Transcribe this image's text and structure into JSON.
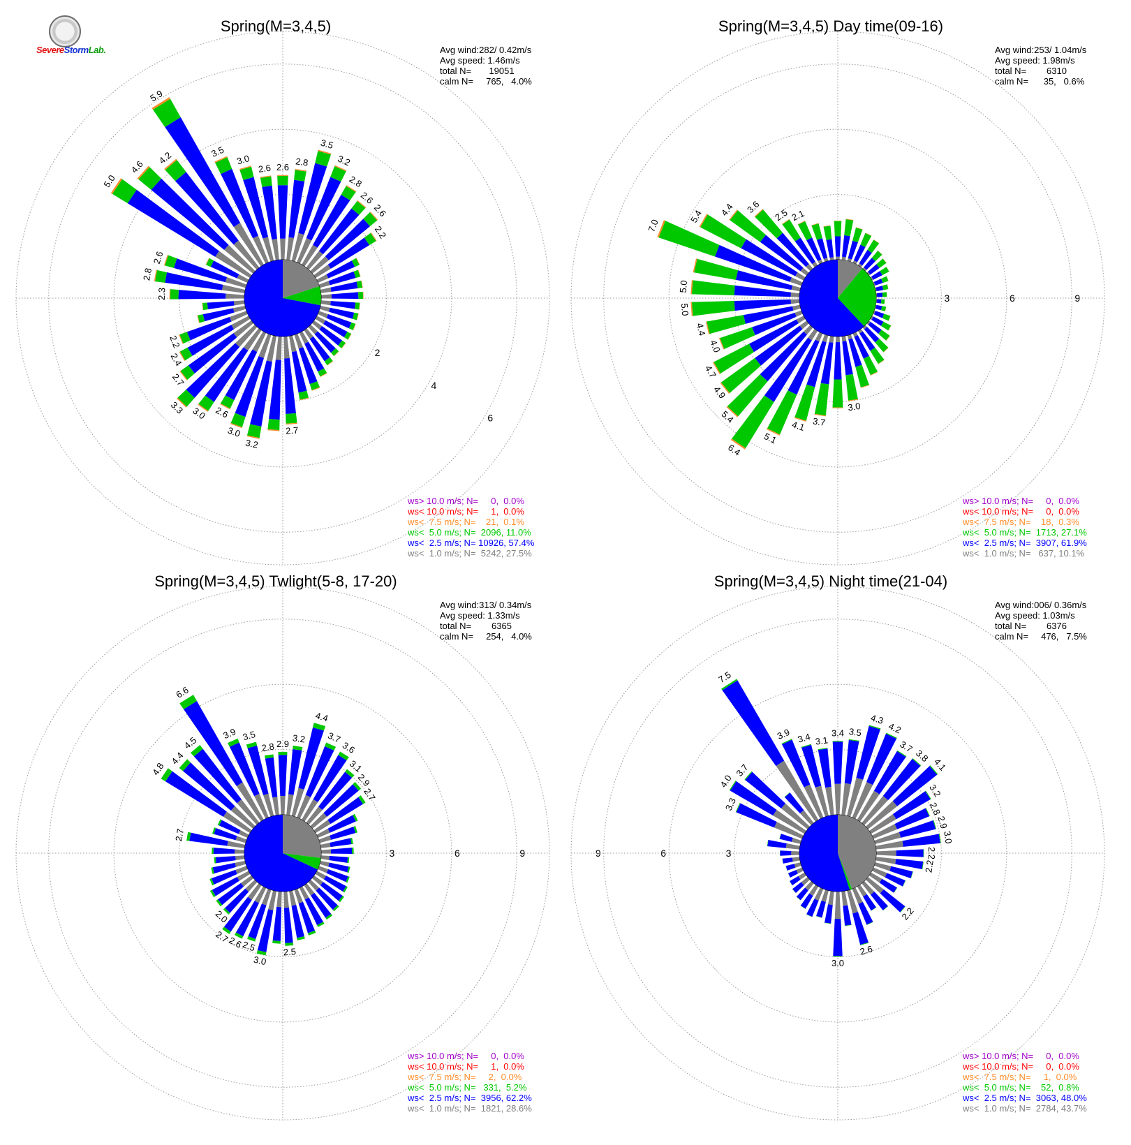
{
  "logo": {
    "text_part1": "Severe",
    "text_part2": "Storm",
    "text_part3": "Lab."
  },
  "colors": {
    "c1": "#808080",
    "c2": "#0000ff",
    "c3": "#00c800",
    "c4": "#ff8c28",
    "c5": "#ff0000",
    "c6": "#a000c8",
    "calm_fill": "#ffffff",
    "grid": "#999999"
  },
  "chart_data": [
    {
      "type": "wind-rose",
      "title": "Spring(M=3,4,5)",
      "stats": [
        "Avg wind:282/ 0.42m/s",
        "Avg speed: 1.46m/s",
        "total N=       19051",
        "calm N=     765,   4.0%"
      ],
      "ring_ticks": [
        "2",
        "4",
        "6"
      ],
      "ring_values": [
        2,
        4,
        6
      ],
      "rmax": 7,
      "ring_label_bearing": 120,
      "petal_totals": [
        2.6,
        2.8,
        3.5,
        3.2,
        2.8,
        2.6,
        2.6,
        2.2,
        1.4,
        1.3,
        1.3,
        1.3,
        1.2,
        1.2,
        1.2,
        1.2,
        1.2,
        1.2,
        1.3,
        1.5,
        1.8,
        2.0,
        2.7,
        2.9,
        3.2,
        3.0,
        2.6,
        3.0,
        3.3,
        2.7,
        2.4,
        2.2,
        1.5,
        1.3,
        2.3,
        2.8,
        2.6,
        1.4,
        5.0,
        4.6,
        4.2,
        5.9,
        3.5,
        3.0,
        2.6
      ],
      "petal_labels": [
        "2.6",
        "2.8",
        "3.5",
        "3.2",
        "2.8",
        "2.6",
        "2.6",
        "2.2",
        "",
        "",
        "",
        "",
        "",
        "",
        "",
        "",
        "",
        "",
        "",
        "",
        "",
        "",
        "2.7",
        "",
        "3.2",
        "3.0",
        "2.6",
        "3.0",
        "3.3",
        "2.7",
        "2.4",
        "2.2",
        "",
        "",
        "2.3",
        "2.8",
        "2.6",
        "",
        "5.0",
        "4.6",
        "4.2",
        "5.9",
        "3.5",
        "3.0",
        "2.6"
      ],
      "speed_fractions": [
        0.25,
        0.63,
        0.11,
        0.01
      ],
      "pie_fractions": [
        0.2,
        0.08,
        0.72
      ],
      "classes": [
        {
          "color": "#a000c8",
          "text": "ws> 10.0 m/s; N=     0,  0.0%"
        },
        {
          "color": "#ff0000",
          "text": "ws< 10.0 m/s; N=     1,  0.0%"
        },
        {
          "color": "#ff8c28",
          "text": "ws<  7.5 m/s; N=    21,  0.1%"
        },
        {
          "color": "#00c800",
          "text": "ws<  5.0 m/s; N=  2096, 11.0%"
        },
        {
          "color": "#0000ff",
          "text": "ws<  2.5 m/s; N= 10926, 57.4%"
        },
        {
          "color": "#808080",
          "text": "ws<  1.0 m/s; N=  5242, 27.5%"
        }
      ]
    },
    {
      "type": "wind-rose",
      "title": "Spring(M=3,4,5) Day time(09-16)",
      "stats": [
        "Avg wind:253/ 1.04m/s",
        "Avg speed: 1.98m/s",
        "total N=        6310",
        "calm N=      35,   0.6%"
      ],
      "ring_ticks": [
        "3",
        "6",
        "9"
      ],
      "ring_values": [
        3,
        6,
        9
      ],
      "rmax": 10.5,
      "ring_label_bearing": 90,
      "petal_totals": [
        1.8,
        1.9,
        1.6,
        1.5,
        1.4,
        1.1,
        1.0,
        0.9,
        0.7,
        0.6,
        0.5,
        0.4,
        0.5,
        0.8,
        1.0,
        1.2,
        1.5,
        1.8,
        2.1,
        2.5,
        3.0,
        3.3,
        3.7,
        4.1,
        5.1,
        6.4,
        5.4,
        4.9,
        4.7,
        4.0,
        4.4,
        5.0,
        5.0,
        5.0,
        7.0,
        5.4,
        4.4,
        3.6,
        2.5,
        2.1,
        1.8,
        1.6
      ],
      "petal_labels": [
        "",
        "",
        "",
        "",
        "",
        "",
        "",
        "",
        "",
        "",
        "",
        "",
        "",
        "",
        "",
        "",
        "",
        "",
        "",
        "",
        "3.0",
        "",
        "3.7",
        "4.1",
        "5.1",
        "6.4",
        "5.4",
        "4.9",
        "4.7",
        "4.0",
        "4.4",
        "5.0",
        "5.0",
        "",
        "7.0",
        "5.4",
        "4.4",
        "3.6",
        "2.5",
        "2.1",
        "",
        ""
      ],
      "speed_fractions": [
        0.08,
        0.52,
        0.39,
        0.01
      ],
      "pie_fractions": [
        0.11,
        0.0,
        0.27,
        0.62
      ],
      "classes": [
        {
          "color": "#a000c8",
          "text": "ws> 10.0 m/s; N=     0,  0.0%"
        },
        {
          "color": "#ff0000",
          "text": "ws< 10.0 m/s; N=     0,  0.0%"
        },
        {
          "color": "#ff8c28",
          "text": "ws<  7.5 m/s; N=    18,  0.3%"
        },
        {
          "color": "#00c800",
          "text": "ws<  5.0 m/s; N=  1713, 27.1%"
        },
        {
          "color": "#0000ff",
          "text": "ws<  2.5 m/s; N=  3907, 61.9%"
        },
        {
          "color": "#808080",
          "text": "ws<  1.0 m/s; N=   637, 10.1%"
        }
      ]
    },
    {
      "type": "wind-rose",
      "title": "Spring(M=3,4,5) Twlight(5-8, 17-20)",
      "stats": [
        "Avg wind:313/ 0.34m/s",
        "Avg speed: 1.33m/s",
        "total N=        6365",
        "calm N=     254,   4.0%"
      ],
      "ring_ticks": [
        "3",
        "6",
        "9"
      ],
      "ring_values": [
        3,
        6,
        9
      ],
      "rmax": 10.5,
      "ring_label_bearing": 90,
      "petal_totals": [
        2.9,
        3.2,
        4.4,
        3.7,
        3.6,
        3.1,
        2.9,
        2.7,
        2.0,
        1.8,
        1.5,
        1.5,
        1.3,
        1.4,
        1.5,
        1.6,
        1.7,
        1.8,
        1.9,
        2.0,
        2.2,
        2.3,
        2.5,
        2.4,
        3.0,
        2.5,
        2.6,
        2.7,
        2.0,
        2.0,
        2.0,
        1.8,
        1.6,
        1.4,
        1.5,
        2.7,
        1.6,
        1.5,
        4.8,
        4.4,
        4.5,
        6.6,
        3.9,
        3.5,
        2.8
      ],
      "petal_labels": [
        "2.9",
        "3.2",
        "4.4",
        "3.7",
        "3.6",
        "3.1",
        "2.9",
        "2.7",
        "",
        "",
        "",
        "",
        "",
        "",
        "",
        "",
        "",
        "",
        "",
        "",
        "",
        "",
        "2.5",
        "",
        "3.0",
        "2.5",
        "2.6",
        "2.7",
        "2.0",
        "",
        "",
        "",
        "",
        "",
        "",
        "2.7",
        "",
        "",
        "4.8",
        "4.4",
        "4.5",
        "6.6",
        "3.9",
        "3.5",
        "2.8"
      ],
      "speed_fractions": [
        0.3,
        0.65,
        0.05
      ],
      "pie_fractions": [
        0.27,
        0.05,
        0.68
      ],
      "classes": [
        {
          "color": "#a000c8",
          "text": "ws> 10.0 m/s; N=     0,  0.0%"
        },
        {
          "color": "#ff0000",
          "text": "ws< 10.0 m/s; N=     1,  0.0%"
        },
        {
          "color": "#ff8c28",
          "text": "ws<  7.5 m/s; N=     2,  0.0%"
        },
        {
          "color": "#00c800",
          "text": "ws<  5.0 m/s; N=   331,  5.2%"
        },
        {
          "color": "#0000ff",
          "text": "ws<  2.5 m/s; N=  3956, 62.2%"
        },
        {
          "color": "#808080",
          "text": "ws<  1.0 m/s; N=  1821, 28.6%"
        }
      ]
    },
    {
      "type": "wind-rose",
      "title": "Spring(M=3,4,5) Night time(21-04)",
      "stats": [
        "Avg wind:006/ 0.36m/s",
        "Avg speed: 1.03m/s",
        "total N=        6376",
        "calm N=     476,   7.5%"
      ],
      "ring_ticks": [
        "3",
        "6",
        "9"
      ],
      "ring_values": [
        3,
        6,
        9
      ],
      "rmax": 10.5,
      "ring_label_bearing": 270,
      "petal_totals": [
        3.4,
        3.5,
        4.3,
        4.2,
        3.7,
        3.8,
        4.1,
        3.2,
        2.8,
        2.9,
        3.0,
        2.2,
        2.2,
        1.8,
        1.6,
        1.4,
        2.2,
        1.6,
        1.3,
        1.8,
        2.6,
        1.6,
        3.0,
        1.5,
        1.3,
        1.4,
        1.2,
        1.0,
        0.9,
        0.8,
        0.7,
        0.7,
        0.8,
        0.9,
        1.5,
        1.0,
        3.3,
        4.0,
        3.7,
        1.8,
        7.5,
        3.9,
        3.4,
        3.1
      ],
      "petal_labels": [
        "3.4",
        "3.5",
        "4.3",
        "4.2",
        "3.7",
        "3.8",
        "4.1",
        "3.2",
        "2.8",
        "2.9",
        "3.0",
        "2.2",
        "2.2",
        "",
        "",
        "",
        "2.2",
        "",
        "",
        "",
        "2.6",
        "",
        "3.0",
        "",
        "",
        "",
        "",
        "",
        "",
        "",
        "",
        "",
        "",
        "",
        "",
        "",
        "3.3",
        "4.0",
        "3.7",
        "",
        "7.5",
        "3.9",
        "3.4",
        "3.1"
      ],
      "speed_fractions": [
        0.42,
        0.57,
        0.01
      ],
      "pie_fractions": [
        0.44,
        0.01,
        0.55
      ],
      "classes": [
        {
          "color": "#a000c8",
          "text": "ws> 10.0 m/s; N=     0,  0.0%"
        },
        {
          "color": "#ff0000",
          "text": "ws< 10.0 m/s; N=     0,  0.0%"
        },
        {
          "color": "#ff8c28",
          "text": "ws<  7.5 m/s; N=     1,  0.0%"
        },
        {
          "color": "#00c800",
          "text": "ws<  5.0 m/s; N=    52,  0.8%"
        },
        {
          "color": "#0000ff",
          "text": "ws<  2.5 m/s; N=  3063, 48.0%"
        },
        {
          "color": "#808080",
          "text": "ws<  1.0 m/s; N=  2784, 43.7%"
        }
      ]
    }
  ]
}
